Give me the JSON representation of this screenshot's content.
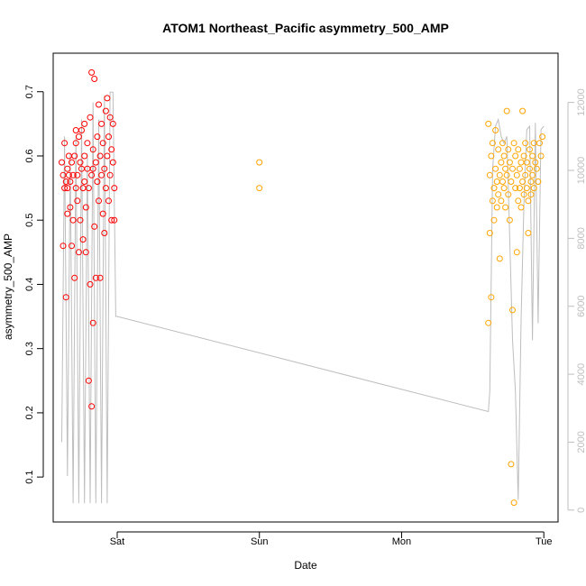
{
  "chart_data": {
    "type": "scatter",
    "title": "ATOM1 Northeast_Pacific asymmetry_500_AMP",
    "xlabel": "Date",
    "ylabel": "asymmetry_500_AMP",
    "x_ticks": [
      "Sat",
      "Sun",
      "Mon",
      "Tue"
    ],
    "xlim_days": [
      -0.45,
      3.1
    ],
    "ylim": [
      0.03,
      0.76
    ],
    "y_ticks": [
      0.1,
      0.2,
      0.3,
      0.4,
      0.5,
      0.6,
      0.7
    ],
    "y2_ticks": [
      0,
      2000,
      4000,
      6000,
      8000,
      10000,
      12000
    ],
    "y2lim": [
      -350,
      13450
    ],
    "grid": false,
    "colors": {
      "series1": "#ff0000",
      "series2": "#ffa500",
      "line": "#bebebe",
      "frame": "#000000",
      "right_axis": "#bebebe"
    },
    "series": [
      {
        "color": "#ff0000",
        "x_range_days": [
          -0.39,
          -0.02
        ],
        "points": [
          [
            -0.39,
            0.59
          ],
          [
            -0.38,
            0.46
          ],
          [
            -0.38,
            0.57
          ],
          [
            -0.37,
            0.55
          ],
          [
            -0.37,
            0.62
          ],
          [
            -0.36,
            0.38
          ],
          [
            -0.36,
            0.56
          ],
          [
            -0.35,
            0.58
          ],
          [
            -0.35,
            0.51
          ],
          [
            -0.34,
            0.57
          ],
          [
            -0.34,
            0.6
          ],
          [
            -0.33,
            0.52
          ],
          [
            -0.33,
            0.56
          ],
          [
            -0.32,
            0.46
          ],
          [
            -0.32,
            0.59
          ],
          [
            -0.31,
            0.57
          ],
          [
            -0.31,
            0.5
          ],
          [
            -0.3,
            0.6
          ],
          [
            -0.3,
            0.41
          ],
          [
            -0.29,
            0.62
          ],
          [
            -0.29,
            0.55
          ],
          [
            -0.28,
            0.53
          ],
          [
            -0.28,
            0.57
          ],
          [
            -0.27,
            0.63
          ],
          [
            -0.27,
            0.45
          ],
          [
            -0.26,
            0.59
          ],
          [
            -0.26,
            0.5
          ],
          [
            -0.25,
            0.64
          ],
          [
            -0.25,
            0.58
          ],
          [
            -0.24,
            0.55
          ],
          [
            -0.24,
            0.47
          ],
          [
            -0.23,
            0.6
          ],
          [
            -0.23,
            0.65
          ],
          [
            -0.22,
            0.52
          ],
          [
            -0.22,
            0.45
          ],
          [
            -0.21,
            0.58
          ],
          [
            -0.21,
            0.62
          ],
          [
            -0.2,
            0.25
          ],
          [
            -0.2,
            0.55
          ],
          [
            -0.19,
            0.66
          ],
          [
            -0.19,
            0.4
          ],
          [
            -0.18,
            0.21
          ],
          [
            -0.18,
            0.57
          ],
          [
            -0.18,
            0.73
          ],
          [
            -0.17,
            0.34
          ],
          [
            -0.17,
            0.61
          ],
          [
            -0.16,
            0.72
          ],
          [
            -0.16,
            0.49
          ],
          [
            -0.15,
            0.59
          ],
          [
            -0.15,
            0.41
          ],
          [
            -0.14,
            0.63
          ],
          [
            -0.14,
            0.56
          ],
          [
            -0.13,
            0.53
          ],
          [
            -0.13,
            0.68
          ],
          [
            -0.12,
            0.6
          ],
          [
            -0.12,
            0.41
          ],
          [
            -0.11,
            0.57
          ],
          [
            -0.11,
            0.65
          ],
          [
            -0.1,
            0.51
          ],
          [
            -0.1,
            0.62
          ],
          [
            -0.09,
            0.58
          ],
          [
            -0.09,
            0.48
          ],
          [
            -0.08,
            0.67
          ],
          [
            -0.08,
            0.55
          ],
          [
            -0.07,
            0.6
          ],
          [
            -0.07,
            0.69
          ],
          [
            -0.06,
            0.53
          ],
          [
            -0.06,
            0.63
          ],
          [
            -0.05,
            0.57
          ],
          [
            -0.05,
            0.66
          ],
          [
            -0.04,
            0.61
          ],
          [
            -0.04,
            0.5
          ],
          [
            -0.03,
            0.59
          ],
          [
            -0.03,
            0.65
          ],
          [
            -0.02,
            0.55
          ],
          [
            -0.02,
            0.5
          ],
          [
            -0.35,
            0.55
          ],
          [
            -0.29,
            0.64
          ],
          [
            -0.23,
            0.56
          ],
          [
            -0.17,
            0.58
          ]
        ]
      },
      {
        "color": "#ffa500",
        "x_range_days": [
          1.0,
          2.99
        ],
        "points": [
          [
            1.0,
            0.59
          ],
          [
            1.0,
            0.55
          ],
          [
            2.61,
            0.65
          ],
          [
            2.61,
            0.34
          ],
          [
            2.62,
            0.57
          ],
          [
            2.62,
            0.48
          ],
          [
            2.63,
            0.6
          ],
          [
            2.63,
            0.38
          ],
          [
            2.64,
            0.53
          ],
          [
            2.64,
            0.62
          ],
          [
            2.65,
            0.55
          ],
          [
            2.65,
            0.5
          ],
          [
            2.66,
            0.64
          ],
          [
            2.66,
            0.58
          ],
          [
            2.67,
            0.56
          ],
          [
            2.67,
            0.52
          ],
          [
            2.68,
            0.61
          ],
          [
            2.68,
            0.54
          ],
          [
            2.69,
            0.57
          ],
          [
            2.69,
            0.44
          ],
          [
            2.7,
            0.59
          ],
          [
            2.7,
            0.53
          ],
          [
            2.71,
            0.62
          ],
          [
            2.71,
            0.56
          ],
          [
            2.72,
            0.55
          ],
          [
            2.72,
            0.6
          ],
          [
            2.73,
            0.52
          ],
          [
            2.73,
            0.58
          ],
          [
            2.74,
            0.67
          ],
          [
            2.74,
            0.57
          ],
          [
            2.75,
            0.54
          ],
          [
            2.75,
            0.61
          ],
          [
            2.76,
            0.5
          ],
          [
            2.76,
            0.59
          ],
          [
            2.77,
            0.56
          ],
          [
            2.77,
            0.12
          ],
          [
            2.78,
            0.58
          ],
          [
            2.78,
            0.36
          ],
          [
            2.79,
            0.06
          ],
          [
            2.79,
            0.62
          ],
          [
            2.8,
            0.55
          ],
          [
            2.8,
            0.6
          ],
          [
            2.81,
            0.45
          ],
          [
            2.81,
            0.57
          ],
          [
            2.82,
            0.53
          ],
          [
            2.82,
            0.61
          ],
          [
            2.83,
            0.58
          ],
          [
            2.83,
            0.55
          ],
          [
            2.84,
            0.52
          ],
          [
            2.84,
            0.59
          ],
          [
            2.85,
            0.67
          ],
          [
            2.85,
            0.56
          ],
          [
            2.86,
            0.6
          ],
          [
            2.86,
            0.54
          ],
          [
            2.87,
            0.57
          ],
          [
            2.87,
            0.62
          ],
          [
            2.88,
            0.55
          ],
          [
            2.88,
            0.59
          ],
          [
            2.89,
            0.53
          ],
          [
            2.89,
            0.48
          ],
          [
            2.9,
            0.58
          ],
          [
            2.9,
            0.61
          ],
          [
            2.91,
            0.56
          ],
          [
            2.91,
            0.54
          ],
          [
            2.92,
            0.6
          ],
          [
            2.92,
            0.57
          ],
          [
            2.93,
            0.62
          ],
          [
            2.93,
            0.55
          ],
          [
            2.94,
            0.59
          ],
          [
            2.95,
            0.58
          ],
          [
            2.96,
            0.56
          ],
          [
            2.97,
            0.62
          ],
          [
            2.98,
            0.6
          ],
          [
            2.99,
            0.63
          ]
        ]
      }
    ],
    "line_series": {
      "axis": "right",
      "x": [
        -0.39,
        -0.37,
        -0.35,
        -0.33,
        -0.31,
        -0.29,
        -0.27,
        -0.25,
        -0.23,
        -0.21,
        -0.19,
        -0.17,
        -0.15,
        -0.13,
        -0.11,
        -0.09,
        -0.07,
        -0.05,
        -0.03,
        -0.01,
        0.0,
        2.61,
        2.62,
        2.64,
        2.66,
        2.68,
        2.7,
        2.72,
        2.74,
        2.76,
        2.78,
        2.8,
        2.82,
        2.84,
        2.86,
        2.88,
        2.9,
        2.92,
        2.94,
        2.96,
        2.98,
        3.0
      ],
      "y": [
        2000,
        11000,
        1000,
        10500,
        200,
        11000,
        200,
        11500,
        200,
        10500,
        200,
        12000,
        200,
        11500,
        200,
        12200,
        200,
        12300,
        12300,
        5700,
        5700,
        2900,
        3500,
        10000,
        11300,
        11500,
        11000,
        10800,
        11000,
        8000,
        5000,
        3500,
        300,
        5600,
        9000,
        11200,
        11300,
        5000,
        11400,
        5500,
        11200,
        11300
      ]
    }
  }
}
